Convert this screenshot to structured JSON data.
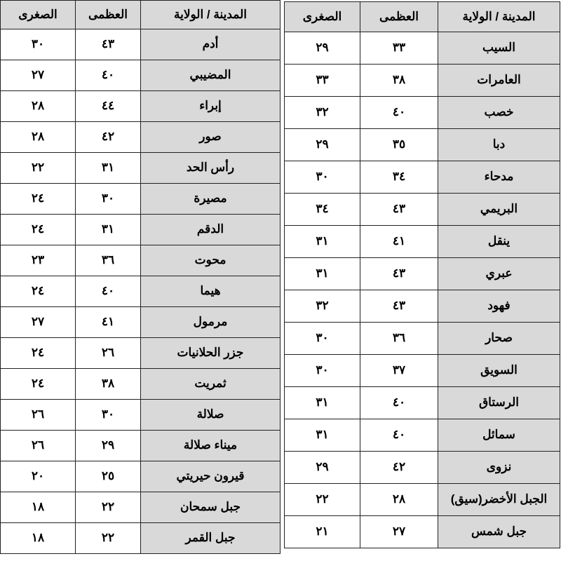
{
  "headers": {
    "city": "المدينة / الولاية",
    "max": "العظمى",
    "min": "الصغرى"
  },
  "colors": {
    "header_bg": "#d9d9d9",
    "city_bg": "#d9d9d9",
    "border": "#222222"
  },
  "right_table": [
    {
      "city": "السيب",
      "max": "٣٣",
      "min": "٢٩"
    },
    {
      "city": "العامرات",
      "max": "٣٨",
      "min": "٣٣"
    },
    {
      "city": "خصب",
      "max": "٤٠",
      "min": "٣٢"
    },
    {
      "city": "دبا",
      "max": "٣٥",
      "min": "٢٩"
    },
    {
      "city": "مدحاء",
      "max": "٣٤",
      "min": "٣٠"
    },
    {
      "city": "البريمي",
      "max": "٤٣",
      "min": "٣٤"
    },
    {
      "city": "ينقل",
      "max": "٤١",
      "min": "٣١"
    },
    {
      "city": "عبري",
      "max": "٤٣",
      "min": "٣١"
    },
    {
      "city": "فهود",
      "max": "٤٣",
      "min": "٣٢"
    },
    {
      "city": "صحار",
      "max": "٣٦",
      "min": "٣٠"
    },
    {
      "city": "السويق",
      "max": "٣٧",
      "min": "٣٠"
    },
    {
      "city": "الرستاق",
      "max": "٤٠",
      "min": "٣١"
    },
    {
      "city": "سمائل",
      "max": "٤٠",
      "min": "٣١"
    },
    {
      "city": "نزوى",
      "max": "٤٢",
      "min": "٢٩"
    },
    {
      "city": "الجبل الأخضر(سيق)",
      "max": "٢٨",
      "min": "٢٢"
    },
    {
      "city": "جبل شمس",
      "max": "٢٧",
      "min": "٢١"
    }
  ],
  "left_table": [
    {
      "city": "أدم",
      "max": "٤٣",
      "min": "٣٠"
    },
    {
      "city": "المضيبي",
      "max": "٤٠",
      "min": "٢٧"
    },
    {
      "city": "إبراء",
      "max": "٤٤",
      "min": "٢٨"
    },
    {
      "city": "صور",
      "max": "٤٢",
      "min": "٢٨"
    },
    {
      "city": "رأس الحد",
      "max": "٣١",
      "min": "٢٢"
    },
    {
      "city": "مصيرة",
      "max": "٣٠",
      "min": "٢٤"
    },
    {
      "city": "الدقم",
      "max": "٣١",
      "min": "٢٤"
    },
    {
      "city": "محوت",
      "max": "٣٦",
      "min": "٢٣"
    },
    {
      "city": "هيما",
      "max": "٤٠",
      "min": "٢٤"
    },
    {
      "city": "مرمول",
      "max": "٤١",
      "min": "٢٧"
    },
    {
      "city": "جزر الحلانيات",
      "max": "٢٦",
      "min": "٢٤"
    },
    {
      "city": "ثمريت",
      "max": "٣٨",
      "min": "٢٤"
    },
    {
      "city": "صلالة",
      "max": "٣٠",
      "min": "٢٦"
    },
    {
      "city": "ميناء صلالة",
      "max": "٢٩",
      "min": "٢٦"
    },
    {
      "city": "قيرون حيريتي",
      "max": "٢٥",
      "min": "٢٠"
    },
    {
      "city": "جبل سمحان",
      "max": "٢٢",
      "min": "١٨"
    },
    {
      "city": "جبل القمر",
      "max": "٢٢",
      "min": "١٨"
    }
  ]
}
